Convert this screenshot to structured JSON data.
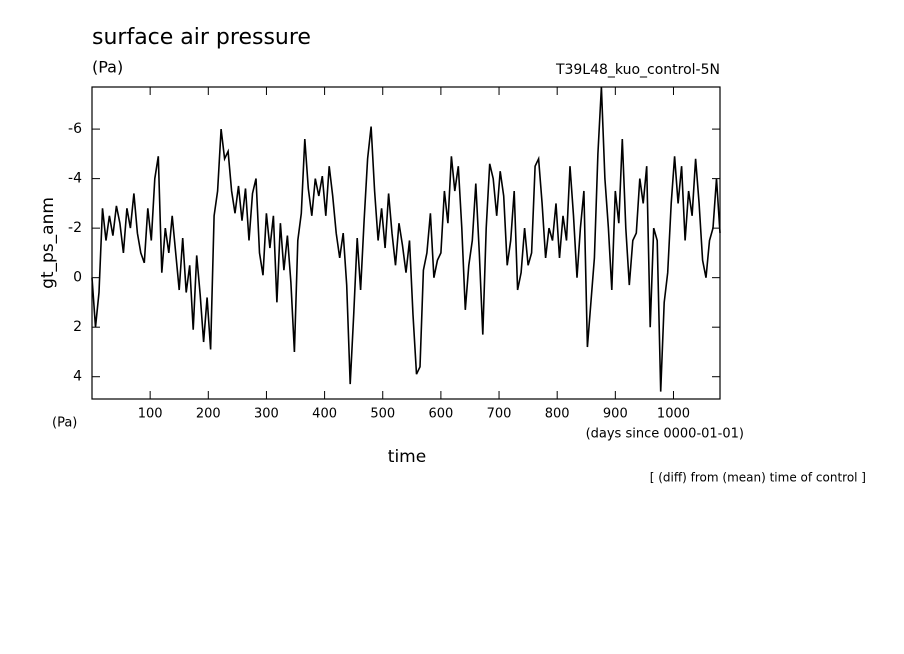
{
  "chart_data": {
    "type": "line",
    "title": "surface air pressure",
    "subtitle": "(Pa)",
    "experiment": "T39L48_kuo_control-5N",
    "y_label": "gt_ps_anm",
    "y_unit": "(Pa)",
    "x_label": "time",
    "x_unit": "(days since 0000-01-01)",
    "note": "[ (diff) from (mean) time of control ]",
    "xlim": [
      0,
      1080
    ],
    "xticks": [
      100,
      200,
      300,
      400,
      500,
      600,
      700,
      800,
      900,
      1000
    ],
    "ylim": [
      -7.7,
      4.9
    ],
    "yticks": [
      -6,
      -4,
      -2,
      0,
      2,
      4
    ],
    "y_reversed": true,
    "color": "#000000",
    "x": [
      0,
      6,
      12,
      18,
      24,
      30,
      36,
      42,
      48,
      54,
      60,
      66,
      72,
      78,
      84,
      90,
      96,
      102,
      108,
      114,
      120,
      126,
      132,
      138,
      144,
      150,
      156,
      162,
      168,
      174,
      180,
      186,
      192,
      198,
      204,
      210,
      216,
      222,
      228,
      234,
      240,
      246,
      252,
      258,
      264,
      270,
      276,
      282,
      288,
      294,
      300,
      306,
      312,
      318,
      324,
      330,
      336,
      342,
      348,
      354,
      360,
      366,
      372,
      378,
      384,
      390,
      396,
      402,
      408,
      414,
      420,
      426,
      432,
      438,
      444,
      450,
      456,
      462,
      468,
      474,
      480,
      486,
      492,
      498,
      504,
      510,
      516,
      522,
      528,
      534,
      540,
      546,
      552,
      558,
      564,
      570,
      576,
      582,
      588,
      594,
      600,
      606,
      612,
      618,
      624,
      630,
      636,
      642,
      648,
      654,
      660,
      666,
      672,
      678,
      684,
      690,
      696,
      702,
      708,
      714,
      720,
      726,
      732,
      738,
      744,
      750,
      756,
      762,
      768,
      774,
      780,
      786,
      792,
      798,
      804,
      810,
      816,
      822,
      828,
      834,
      840,
      846,
      852,
      858,
      864,
      870,
      876,
      882,
      888,
      894,
      900,
      906,
      912,
      918,
      924,
      930,
      936,
      942,
      948,
      954,
      960,
      966,
      972,
      978,
      984,
      990,
      996,
      1002,
      1008,
      1014,
      1020,
      1026,
      1032,
      1038,
      1044,
      1050,
      1056,
      1062,
      1068,
      1074,
      1080
    ],
    "values": [
      0,
      2.0,
      0.6,
      -2.8,
      -1.5,
      -2.5,
      -1.7,
      -2.9,
      -2.2,
      -1.0,
      -2.8,
      -2.0,
      -3.4,
      -1.8,
      -1.0,
      -0.6,
      -2.8,
      -1.5,
      -4.0,
      -4.9,
      -0.2,
      -2.0,
      -1.0,
      -2.5,
      -1.0,
      0.5,
      -1.6,
      0.6,
      -0.5,
      2.1,
      -0.9,
      0.7,
      2.6,
      0.8,
      2.9,
      -2.5,
      -3.5,
      -6.0,
      -4.8,
      -5.1,
      -3.5,
      -2.6,
      -3.7,
      -2.3,
      -3.6,
      -1.5,
      -3.4,
      -4.0,
      -1.0,
      -0.1,
      -2.6,
      -1.2,
      -2.5,
      1.0,
      -2.2,
      -0.3,
      -1.7,
      0.2,
      3.0,
      -1.5,
      -2.6,
      -5.6,
      -3.6,
      -2.5,
      -4.0,
      -3.3,
      -4.1,
      -2.5,
      -4.5,
      -3.3,
      -1.8,
      -0.8,
      -1.8,
      0.3,
      4.3,
      1.5,
      -1.6,
      0.5,
      -2.3,
      -4.8,
      -6.1,
      -3.5,
      -1.5,
      -2.8,
      -1.2,
      -3.4,
      -1.8,
      -0.5,
      -2.2,
      -1.3,
      -0.2,
      -1.5,
      1.5,
      3.9,
      3.6,
      -0.3,
      -1.0,
      -2.6,
      0.0,
      -0.7,
      -1.0,
      -3.5,
      -2.2,
      -4.9,
      -3.5,
      -4.5,
      -2.0,
      1.3,
      -0.5,
      -1.5,
      -3.8,
      -1.0,
      2.3,
      -2.0,
      -4.6,
      -4.0,
      -2.5,
      -4.3,
      -3.3,
      -0.5,
      -1.5,
      -3.5,
      0.5,
      -0.2,
      -2.0,
      -0.5,
      -1.0,
      -4.5,
      -4.8,
      -3.0,
      -0.8,
      -2.0,
      -1.5,
      -3.0,
      -0.8,
      -2.5,
      -1.5,
      -4.5,
      -2.5,
      0.0,
      -2.0,
      -3.5,
      2.8,
      1.0,
      -0.8,
      -5.0,
      -7.7,
      -4.0,
      -2.0,
      0.5,
      -3.5,
      -2.2,
      -5.6,
      -2.0,
      0.3,
      -1.5,
      -1.8,
      -4.0,
      -3.0,
      -4.5,
      2.0,
      -2.0,
      -1.5,
      4.6,
      1.0,
      -0.2,
      -3.0,
      -4.9,
      -3.0,
      -4.5,
      -1.5,
      -3.5,
      -2.5,
      -4.8,
      -3.0,
      -0.7,
      0.0,
      -1.5,
      -2.0,
      -4.0,
      -1.8
    ]
  }
}
